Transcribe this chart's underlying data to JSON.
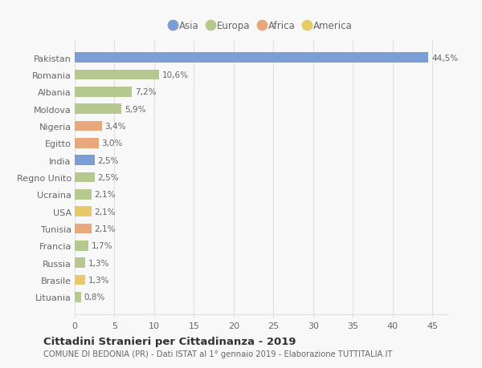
{
  "countries": [
    "Pakistan",
    "Romania",
    "Albania",
    "Moldova",
    "Nigeria",
    "Egitto",
    "India",
    "Regno Unito",
    "Ucraina",
    "USA",
    "Tunisia",
    "Francia",
    "Russia",
    "Brasile",
    "Lituania"
  ],
  "values": [
    44.5,
    10.6,
    7.2,
    5.9,
    3.4,
    3.0,
    2.5,
    2.5,
    2.1,
    2.1,
    2.1,
    1.7,
    1.3,
    1.3,
    0.8
  ],
  "labels": [
    "44,5%",
    "10,6%",
    "7,2%",
    "5,9%",
    "3,4%",
    "3,0%",
    "2,5%",
    "2,5%",
    "2,1%",
    "2,1%",
    "2,1%",
    "1,7%",
    "1,3%",
    "1,3%",
    "0,8%"
  ],
  "continents": [
    "Asia",
    "Europa",
    "Europa",
    "Europa",
    "Africa",
    "Africa",
    "Asia",
    "Europa",
    "Europa",
    "America",
    "Africa",
    "Europa",
    "Europa",
    "America",
    "Europa"
  ],
  "colors": {
    "Asia": "#7b9fd4",
    "Europa": "#b5c98e",
    "Africa": "#e8a87c",
    "America": "#e8c96a"
  },
  "legend_order": [
    "Asia",
    "Europa",
    "Africa",
    "America"
  ],
  "title": "Cittadini Stranieri per Cittadinanza - 2019",
  "subtitle": "COMUNE DI BEDONIA (PR) - Dati ISTAT al 1° gennaio 2019 - Elaborazione TUTTITALIA.IT",
  "xlim": [
    0,
    47
  ],
  "xticks": [
    0,
    5,
    10,
    15,
    20,
    25,
    30,
    35,
    40,
    45
  ],
  "background_color": "#f8f8f8",
  "grid_color": "#e0e0e0",
  "text_color": "#666666",
  "bar_height": 0.6
}
